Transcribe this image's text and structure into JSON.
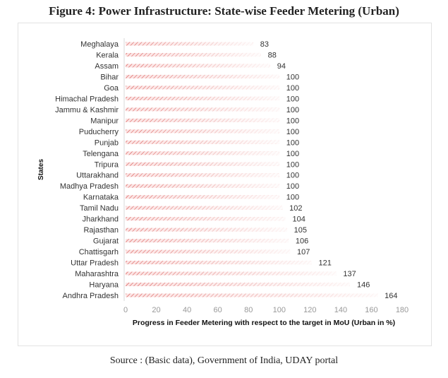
{
  "title": "Figure 4: Power Infrastructure: State-wise Feeder Metering (Urban)",
  "source": "Source : (Basic data), Government of India, UDAY portal",
  "chart_data": {
    "type": "bar",
    "orientation": "horizontal",
    "categories": [
      "Meghalaya",
      "Kerala",
      "Assam",
      "Bihar",
      "Goa",
      "Himachal Pradesh",
      "Jammu & Kashmir",
      "Manipur",
      "Puducherry",
      "Punjab",
      "Telengana",
      "Tripura",
      "Uttarakhand",
      "Madhya Pradesh",
      "Karnataka",
      "Tamil Nadu",
      "Jharkhand",
      "Rajasthan",
      "Gujarat",
      "Chattisgarh",
      "Uttar Pradesh",
      "Maharashtra",
      "Haryana",
      "Andhra Pradesh"
    ],
    "values": [
      83,
      88,
      94,
      100,
      100,
      100,
      100,
      100,
      100,
      100,
      100,
      100,
      100,
      100,
      100,
      102,
      104,
      105,
      106,
      107,
      121,
      137,
      146,
      164
    ],
    "xlabel": "Progress in Feeder Metering with respect to the target in MoU (Urban in %)",
    "ylabel": "States",
    "xlim": [
      0,
      180
    ],
    "xticks": [
      "0",
      "20",
      "40",
      "60",
      "80",
      "100",
      "120",
      "140",
      "160",
      "180"
    ],
    "grid": false,
    "data_labels": true,
    "bar_color": "#d9534f"
  }
}
